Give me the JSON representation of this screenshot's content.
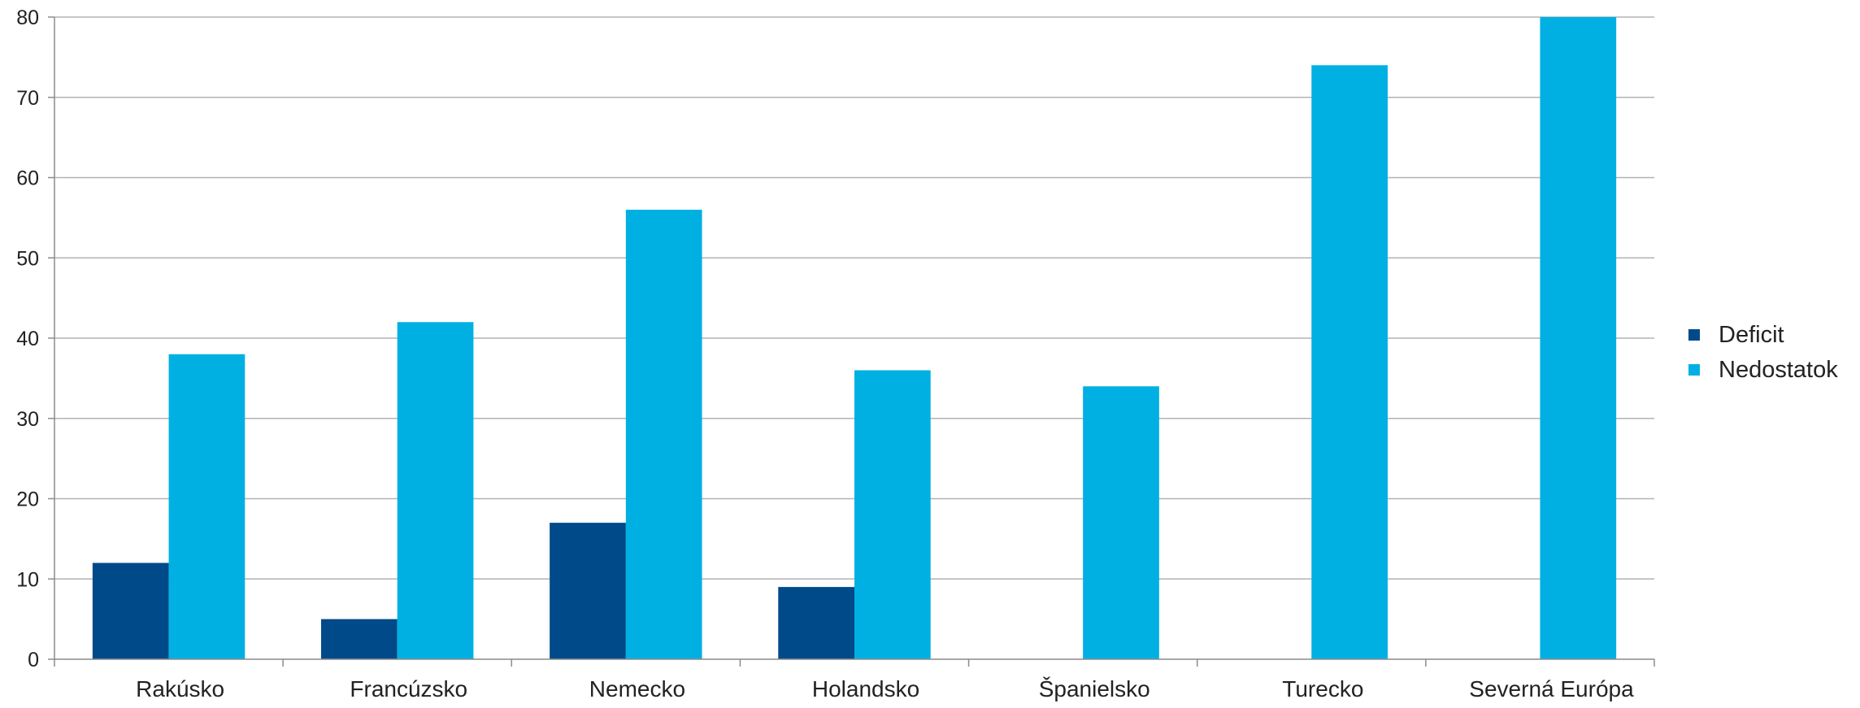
{
  "chart_data": {
    "type": "bar",
    "title": "",
    "xlabel": "",
    "ylabel": "",
    "categories": [
      "Rakúsko",
      "Francúzsko",
      "Nemecko",
      "Holandsko",
      "Španielsko",
      "Turecko",
      "Severná Európa"
    ],
    "series": [
      {
        "name": "Deficit",
        "color": "#004a8a",
        "values": [
          12,
          5,
          17,
          9,
          null,
          null,
          null
        ]
      },
      {
        "name": "Nedostatok",
        "color": "#00b0e3",
        "values": [
          38,
          42,
          56,
          36,
          34,
          74,
          80
        ]
      }
    ],
    "ylim": [
      0,
      80
    ],
    "yticks": [
      0,
      10,
      20,
      30,
      40,
      50,
      60,
      70,
      80
    ],
    "grid": true,
    "legend_position": "right"
  }
}
